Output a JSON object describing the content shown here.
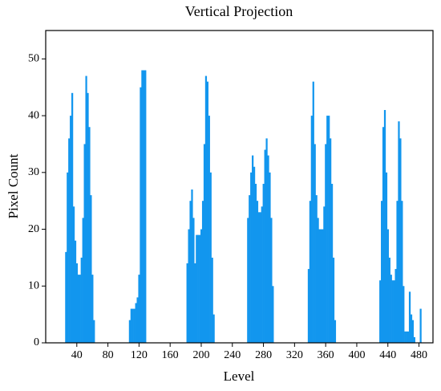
{
  "chart_data": {
    "type": "bar",
    "title": "Vertical Projection",
    "x_label": "Level",
    "y_label": "Pixel Count",
    "color": "#1296ee",
    "x": [
      26,
      28,
      30,
      32,
      34,
      36,
      38,
      40,
      42,
      44,
      46,
      48,
      50,
      52,
      54,
      56,
      58,
      60,
      62,
      108,
      110,
      112,
      114,
      116,
      118,
      120,
      122,
      124,
      126,
      128,
      182,
      184,
      186,
      188,
      190,
      192,
      194,
      196,
      198,
      200,
      202,
      204,
      206,
      208,
      210,
      212,
      214,
      216,
      260,
      262,
      264,
      266,
      268,
      270,
      272,
      274,
      276,
      278,
      280,
      282,
      284,
      286,
      288,
      290,
      292,
      338,
      340,
      342,
      344,
      346,
      348,
      350,
      352,
      354,
      356,
      358,
      360,
      362,
      364,
      366,
      368,
      370,
      372,
      430,
      432,
      434,
      436,
      438,
      440,
      442,
      444,
      446,
      448,
      450,
      452,
      454,
      456,
      458,
      460,
      462,
      464,
      466,
      468,
      470,
      472,
      474,
      482
    ],
    "values": [
      16,
      30,
      36,
      40,
      44,
      24,
      18,
      14,
      12,
      12,
      15,
      22,
      35,
      47,
      44,
      38,
      26,
      12,
      4,
      4,
      6,
      6,
      6,
      7,
      8,
      12,
      45,
      48,
      48,
      48,
      14,
      20,
      25,
      27,
      22,
      14,
      19,
      19,
      19,
      20,
      25,
      35,
      47,
      46,
      40,
      30,
      15,
      5,
      22,
      26,
      30,
      33,
      31,
      28,
      25,
      23,
      23,
      24,
      28,
      34,
      36,
      33,
      30,
      22,
      10,
      13,
      25,
      40,
      46,
      35,
      26,
      22,
      20,
      20,
      20,
      24,
      35,
      40,
      40,
      36,
      28,
      15,
      4,
      11,
      25,
      38,
      41,
      30,
      20,
      15,
      12,
      11,
      11,
      13,
      25,
      39,
      36,
      25,
      10,
      2,
      2,
      2,
      9,
      5,
      4,
      1,
      6
    ],
    "xlim": [
      0,
      498
    ],
    "xticks": [
      40,
      80,
      120,
      160,
      200,
      240,
      280,
      320,
      360,
      400,
      440,
      480
    ],
    "ylim": [
      0,
      55
    ],
    "yticks": [
      0,
      10,
      20,
      30,
      40,
      50
    ]
  }
}
